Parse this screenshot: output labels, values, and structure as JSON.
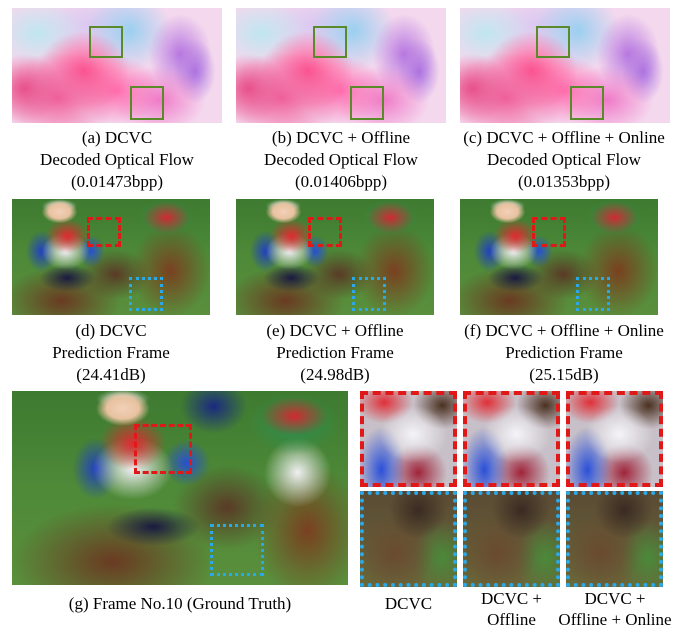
{
  "flow_row": [
    {
      "label": "(a) DCVC",
      "line2": "Decoded Optical Flow",
      "line3": "(0.01473bpp)"
    },
    {
      "label": "(b) DCVC + Offline",
      "line2": "Decoded Optical Flow",
      "line3": "(0.01406bpp)"
    },
    {
      "label": "(c) DCVC + Offline + Online",
      "line2": "Decoded Optical Flow",
      "line3": "(0.01353bpp)"
    }
  ],
  "pred_row": [
    {
      "label": "(d) DCVC",
      "line2": "Prediction Frame",
      "line3": "(24.41dB)"
    },
    {
      "label": "(e) DCVC + Offline",
      "line2": "Prediction Frame",
      "line3": "(24.98dB)"
    },
    {
      "label": "(f) DCVC + Offline + Online",
      "line2": "Prediction Frame",
      "line3": "(25.15dB)"
    }
  ],
  "ground_truth": {
    "label": "(g) Frame No.10 (Ground Truth)"
  },
  "crops": [
    {
      "line1": "DCVC",
      "line2": ""
    },
    {
      "line1": "DCVC +",
      "line2": "Offline"
    },
    {
      "line1": "DCVC +",
      "line2": "Offline + Online"
    }
  ],
  "colors": {
    "green_box": "#5a8a2a",
    "red_box": "#e01818",
    "blue_box": "#2aa8e8"
  }
}
